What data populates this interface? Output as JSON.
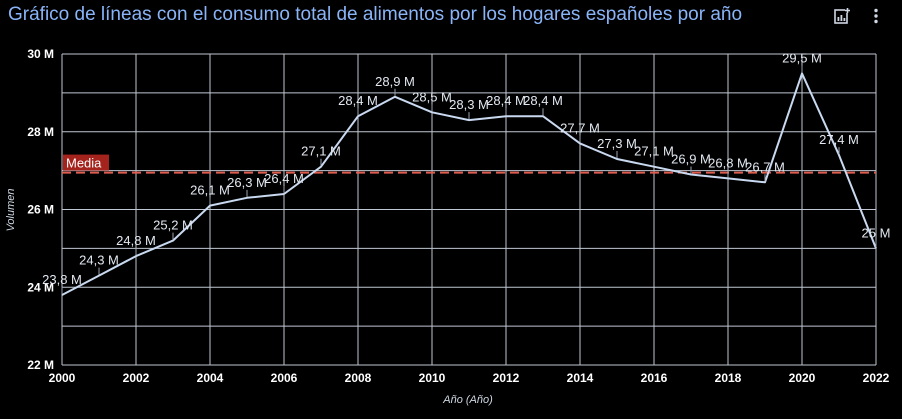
{
  "header": {
    "title": "Gráfico de líneas con el consumo total de alimentos  por los hogares españoles por año",
    "actions": [
      {
        "icon": "chart-explore-icon"
      },
      {
        "icon": "more-vert-icon"
      }
    ]
  },
  "chart_data": {
    "type": "line",
    "title": "Gráfico de líneas con el consumo total de alimentos  por los hogares españoles por año",
    "xlabel": "Año (Año)",
    "ylabel": "Volumen",
    "xlim": [
      2000,
      2022
    ],
    "ylim": [
      22,
      30
    ],
    "x_ticks": [
      "2000",
      "2002",
      "2004",
      "2006",
      "2008",
      "2010",
      "2012",
      "2014",
      "2016",
      "2018",
      "2020",
      "2022"
    ],
    "y_ticks": [
      "22 M",
      "24 M",
      "26 M",
      "28 M",
      "30 M"
    ],
    "grid": true,
    "x": [
      2000,
      2001,
      2002,
      2003,
      2004,
      2005,
      2006,
      2007,
      2008,
      2009,
      2010,
      2011,
      2012,
      2013,
      2014,
      2015,
      2016,
      2017,
      2018,
      2019,
      2020,
      2021,
      2022
    ],
    "series": [
      {
        "values": [
          23.8,
          24.3,
          24.8,
          25.2,
          26.1,
          26.3,
          26.4,
          27.1,
          28.4,
          28.9,
          28.5,
          28.3,
          28.4,
          28.4,
          27.7,
          27.3,
          27.1,
          26.9,
          26.8,
          26.7,
          29.5,
          27.4,
          25
        ],
        "labels": [
          "23,8 M",
          "24,3 M",
          "24,8 M",
          "25,2 M",
          "26,1 M",
          "26,3 M",
          "26,4 M",
          "27,1 M",
          "28,4 M",
          "28,9 M",
          "28,5 M",
          "28,3 M",
          "28,4 M",
          "28,4 M",
          "27,7 M",
          "27,3 M",
          "27,1 M",
          "26,9 M",
          "26,8 M",
          "26,7 M",
          "29,5 M",
          "27,4 M",
          "25 M"
        ],
        "color": "#c9d9f0"
      }
    ],
    "reference_line": {
      "label": "Media",
      "value": 26.95,
      "color": "#e05c4f",
      "label_bg": "#a4231c"
    }
  }
}
